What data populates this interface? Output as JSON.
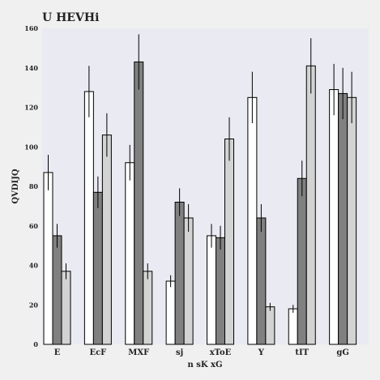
{
  "chart_data": {
    "type": "bar",
    "title": "U  HEVHi",
    "xlabel": "n sK xG",
    "ylabel": "QVDIJQ",
    "ylim": [
      0,
      160
    ],
    "yticks": [
      0,
      20,
      40,
      60,
      80,
      100,
      120,
      140,
      160
    ],
    "grid": false,
    "categories": [
      "E",
      "EcF",
      "MXF",
      "sj",
      "xToE",
      "Y",
      "tIT",
      "gG"
    ],
    "series": [
      {
        "color": "#ffffff",
        "values": [
          87,
          128,
          92,
          32,
          55,
          125,
          18,
          129
        ],
        "errors": [
          9,
          13,
          9,
          3,
          6,
          13,
          2,
          13
        ]
      },
      {
        "color": "#808080",
        "values": [
          55,
          77,
          143,
          72,
          54,
          64,
          84,
          127
        ],
        "errors": [
          6,
          8,
          14,
          7,
          6,
          7,
          9,
          13
        ]
      },
      {
        "color": "#d3d3d3",
        "values": [
          37,
          106,
          37,
          64,
          104,
          19,
          141,
          125
        ],
        "errors": [
          4,
          11,
          4,
          7,
          11,
          2,
          14,
          13
        ]
      }
    ]
  }
}
